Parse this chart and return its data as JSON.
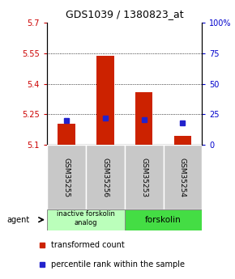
{
  "title": "GDS1039 / 1380823_at",
  "samples": [
    "GSM35255",
    "GSM35256",
    "GSM35253",
    "GSM35254"
  ],
  "red_values": [
    5.205,
    5.535,
    5.36,
    5.145
  ],
  "blue_values_pct": [
    20.0,
    22.0,
    20.5,
    18.0
  ],
  "base_value": 5.1,
  "ylim_left": [
    5.1,
    5.7
  ],
  "ylim_right": [
    0,
    100
  ],
  "yticks_left": [
    5.1,
    5.25,
    5.4,
    5.55,
    5.7
  ],
  "yticks_right": [
    0,
    25,
    50,
    75,
    100
  ],
  "ytick_labels_left": [
    "5.1",
    "5.25",
    "5.4",
    "5.55",
    "5.7"
  ],
  "ytick_labels_right": [
    "0",
    "25",
    "50",
    "75",
    "100%"
  ],
  "left_color": "#cc0000",
  "right_color": "#0000cc",
  "bar_red_color": "#cc2200",
  "bar_blue_color": "#2222cc",
  "group1_label": "inactive forskolin\nanalog",
  "group2_label": "forskolin",
  "group1_indices": [
    0,
    1
  ],
  "group2_indices": [
    2,
    3
  ],
  "agent_label": "agent",
  "legend_red": "transformed count",
  "legend_blue": "percentile rank within the sample",
  "sample_box_color": "#c8c8c8",
  "group1_bg": "#bbffbb",
  "group2_bg": "#44dd44",
  "bar_width": 0.45
}
